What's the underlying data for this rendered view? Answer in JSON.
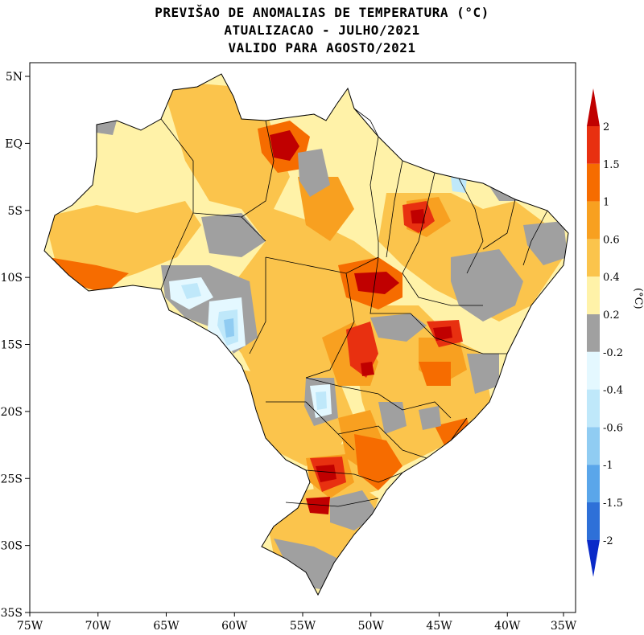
{
  "title": {
    "line1": "PREVIŠAO DE ANOMALIAS DE TEMPERATURA (°C)",
    "line2": "ATUALIZACAO - JULHO/2021",
    "line3": "VALIDO PARA AGOSTO/2021"
  },
  "map": {
    "lat_ticks": [
      "5N",
      "EQ",
      "5S",
      "10S",
      "15S",
      "20S",
      "25S",
      "30S",
      "35S"
    ],
    "lat_values": [
      5,
      0,
      -5,
      -10,
      -15,
      -20,
      -25,
      -30,
      -35
    ],
    "lon_ticks": [
      "75W",
      "70W",
      "65W",
      "60W",
      "55W",
      "50W",
      "45W",
      "40W",
      "35W"
    ],
    "lon_values": [
      -75,
      -70,
      -65,
      -60,
      -55,
      -50,
      -45,
      -40,
      -35
    ]
  },
  "colorbar": {
    "unit": "(°C)",
    "labels": [
      "2",
      "1.5",
      "1",
      "0.6",
      "0.4",
      "0.2",
      "-0.2",
      "-0.4",
      "-0.6",
      "-1",
      "-1.5",
      "-2"
    ],
    "colors": [
      "#c00000",
      "#e83010",
      "#f66c00",
      "#f8a020",
      "#fbc44c",
      "#fff2a8",
      "#a0a0a0",
      "#e4f8ff",
      "#bfe8fa",
      "#90ccf2",
      "#5aa6ea",
      "#2e70d8",
      "#0a2ac8"
    ]
  },
  "legend_colors": {
    "no_change": "#a0a0a0",
    "warm_max": "#c00000",
    "cold_max": "#0000a0"
  }
}
